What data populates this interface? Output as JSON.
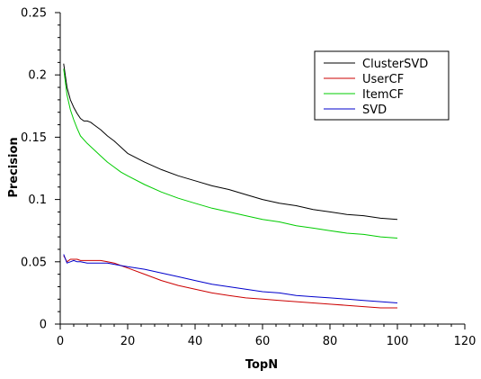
{
  "chart_data": {
    "type": "line",
    "xlabel": "TopN",
    "ylabel": "Precision",
    "xlim": [
      0,
      120
    ],
    "ylim": [
      0,
      0.25
    ],
    "xticks": [
      0,
      20,
      40,
      60,
      80,
      100,
      120
    ],
    "xtick_labels": [
      "0",
      "20",
      "40",
      "60",
      "80",
      "100",
      "120"
    ],
    "yticks": [
      0,
      0.05,
      0.1,
      0.15,
      0.2,
      0.25
    ],
    "ytick_labels": [
      "0",
      "0.05",
      "0.1",
      "0.15",
      "0.2",
      "0.25"
    ],
    "grid": false,
    "legend_position": "top-right",
    "series": [
      {
        "name": "ClusterSVD",
        "color": "#000000",
        "x": [
          1,
          2,
          3,
          4,
          5,
          6,
          7,
          8,
          9,
          10,
          12,
          14,
          16,
          18,
          20,
          25,
          30,
          35,
          40,
          45,
          50,
          55,
          60,
          65,
          70,
          75,
          80,
          85,
          90,
          95,
          100
        ],
        "y": [
          0.209,
          0.19,
          0.18,
          0.174,
          0.169,
          0.165,
          0.163,
          0.163,
          0.162,
          0.16,
          0.156,
          0.151,
          0.147,
          0.142,
          0.137,
          0.13,
          0.124,
          0.119,
          0.115,
          0.111,
          0.108,
          0.104,
          0.1,
          0.097,
          0.095,
          0.092,
          0.09,
          0.088,
          0.087,
          0.085,
          0.084
        ]
      },
      {
        "name": "UserCF",
        "color": "#cc0000",
        "x": [
          1,
          2,
          3,
          4,
          5,
          6,
          8,
          10,
          12,
          14,
          16,
          18,
          20,
          25,
          30,
          35,
          40,
          45,
          50,
          55,
          60,
          65,
          70,
          75,
          80,
          85,
          90,
          95,
          100
        ],
        "y": [
          0.055,
          0.05,
          0.052,
          0.052,
          0.052,
          0.051,
          0.051,
          0.051,
          0.051,
          0.05,
          0.049,
          0.047,
          0.045,
          0.04,
          0.035,
          0.031,
          0.028,
          0.025,
          0.023,
          0.021,
          0.02,
          0.019,
          0.018,
          0.017,
          0.016,
          0.015,
          0.014,
          0.013,
          0.013
        ]
      },
      {
        "name": "ItemCF",
        "color": "#00cc00",
        "x": [
          1,
          2,
          3,
          4,
          5,
          6,
          8,
          10,
          12,
          14,
          16,
          18,
          20,
          25,
          30,
          35,
          40,
          45,
          50,
          55,
          60,
          65,
          70,
          75,
          80,
          85,
          90,
          95,
          100
        ],
        "y": [
          0.205,
          0.184,
          0.172,
          0.164,
          0.157,
          0.151,
          0.145,
          0.14,
          0.135,
          0.13,
          0.126,
          0.122,
          0.119,
          0.112,
          0.106,
          0.101,
          0.097,
          0.093,
          0.09,
          0.087,
          0.084,
          0.082,
          0.079,
          0.077,
          0.075,
          0.073,
          0.072,
          0.07,
          0.069
        ]
      },
      {
        "name": "SVD",
        "color": "#0000cc",
        "x": [
          1,
          2,
          3,
          4,
          5,
          6,
          8,
          10,
          12,
          14,
          16,
          18,
          20,
          25,
          30,
          35,
          40,
          45,
          50,
          55,
          60,
          65,
          70,
          75,
          80,
          85,
          90,
          95,
          100
        ],
        "y": [
          0.056,
          0.049,
          0.05,
          0.051,
          0.05,
          0.05,
          0.049,
          0.049,
          0.049,
          0.049,
          0.048,
          0.047,
          0.046,
          0.044,
          0.041,
          0.038,
          0.035,
          0.032,
          0.03,
          0.028,
          0.026,
          0.025,
          0.023,
          0.022,
          0.021,
          0.02,
          0.019,
          0.018,
          0.017
        ]
      }
    ]
  }
}
